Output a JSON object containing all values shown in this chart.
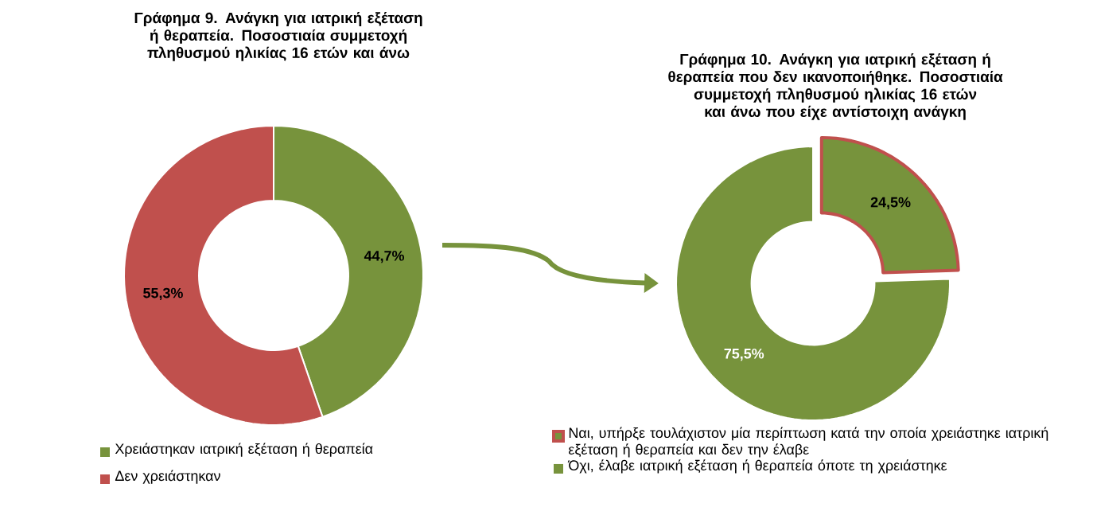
{
  "chart_data": [
    {
      "type": "donut",
      "title": "Γράφημα 9. Ανάγκη για ιατρική εξέταση ή θεραπεία. Ποσοστιαία συμμετοχή πληθυσμού ηλικίας 16 ετών και άνω",
      "categories": [
        "Χρειάστηκαν ιατρική εξέταση ή θεραπεία",
        "Δεν χρειάστηκαν"
      ],
      "values": [
        44.7,
        55.3
      ],
      "value_labels": [
        "44,7%",
        "55,3%"
      ],
      "colors": [
        "#77933c",
        "#c0504d"
      ],
      "legend": "bottom left"
    },
    {
      "type": "donut",
      "title": "Γράφημα 10. Ανάγκη για ιατρική εξέταση ή θεραπεία που δεν ικανοποιήθηκε. Ποσοστιαία συμμετοχή πληθυσμού ηλικίας 16 ετών και άνω που είχε αντίστοιχη ανάγκη",
      "categories": [
        "Ναι, υπήρξε τουλάχιστον μία περίπτωση κατά την οποία χρειάστηκε ιατρική εξέταση ή θεραπεία και δεν την έλαβε",
        "Όχι, έλαβε ιατρική εξέταση ή θεραπεία όποτε τη χρειάστηκε"
      ],
      "values": [
        24.5,
        75.5
      ],
      "value_labels": [
        "24,5%",
        "75,5%"
      ],
      "colors": [
        "#c0504d",
        "#77933c"
      ],
      "legend": "bottom"
    }
  ]
}
